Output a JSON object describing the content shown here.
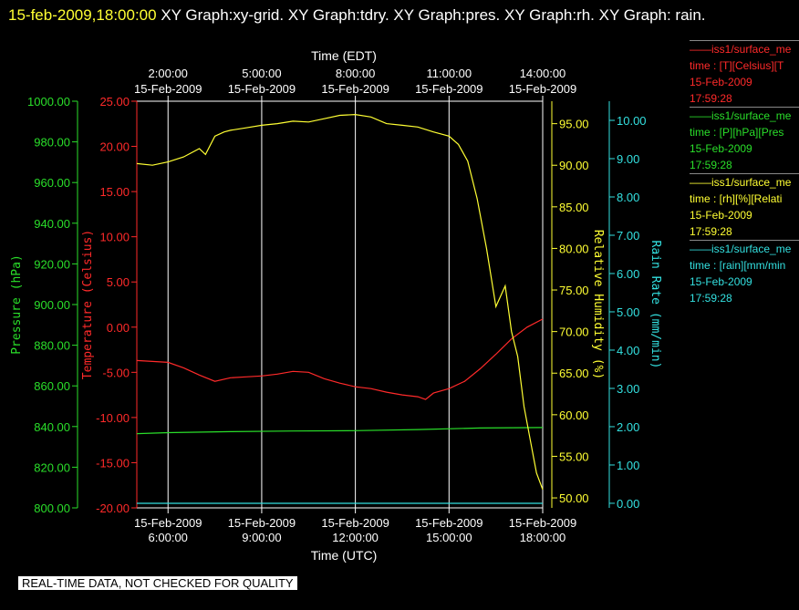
{
  "header": {
    "timestamp": "15-feb-2009,18:00:00",
    "graphs": " XY Graph:xy-grid.  XY Graph:tdry.  XY Graph:pres.  XY Graph:rh.  XY Graph: rain."
  },
  "footer": {
    "notice": "REAL-TIME DATA, NOT CHECKED FOR QUALITY"
  },
  "legend": [
    {
      "name": "iss1/surface_me",
      "var": "time : [T][Celsius][T",
      "date": "15-Feb-2009",
      "time": "17:59:28",
      "color": "#ff2a2a"
    },
    {
      "name": "iss1/surface_me",
      "var": "time : [P][hPa][Pres",
      "date": "15-Feb-2009",
      "time": "17:59:28",
      "color": "#2adf2a"
    },
    {
      "name": "iss1/surface_me",
      "var": "time : [rh][%][Relati",
      "date": "15-Feb-2009",
      "time": "17:59:28",
      "color": "#ffff33"
    },
    {
      "name": "iss1/surface_me",
      "var": "time : [rain][mm/min",
      "date": "15-Feb-2009",
      "time": "17:59:28",
      "color": "#33e0e0"
    }
  ],
  "chart_data": {
    "type": "line",
    "xlabel_top": "Time (EDT)",
    "xlabel_bottom": "Time (UTC)",
    "x_range_utc": [
      "15-Feb-2009 05:00:00",
      "15-Feb-2009 18:00:00"
    ],
    "top_ticks": [
      {
        "date": "15-Feb-2009",
        "time": "2:00:00",
        "utc_hour": 6
      },
      {
        "date": "15-Feb-2009",
        "time": "5:00:00",
        "utc_hour": 9
      },
      {
        "date": "15-Feb-2009",
        "time": "8:00:00",
        "utc_hour": 12
      },
      {
        "date": "15-Feb-2009",
        "time": "11:00:00",
        "utc_hour": 15
      },
      {
        "date": "15-Feb-2009",
        "time": "14:00:00",
        "utc_hour": 18
      }
    ],
    "bottom_ticks": [
      {
        "date": "15-Feb-2009",
        "time": "6:00:00",
        "utc_hour": 6
      },
      {
        "date": "15-Feb-2009",
        "time": "9:00:00",
        "utc_hour": 9
      },
      {
        "date": "15-Feb-2009",
        "time": "12:00:00",
        "utc_hour": 12
      },
      {
        "date": "15-Feb-2009",
        "time": "15:00:00",
        "utc_hour": 15
      },
      {
        "date": "15-Feb-2009",
        "time": "18:00:00",
        "utc_hour": 18
      }
    ],
    "grid": true,
    "axes": [
      {
        "id": "pres",
        "label": "Pressure (hPa)",
        "color": "#2adf2a",
        "range": [
          800,
          1000
        ],
        "ticks": [
          "800.00",
          "820.00",
          "840.00",
          "860.00",
          "880.00",
          "900.00",
          "920.00",
          "940.00",
          "960.00",
          "980.00",
          "1000.00"
        ]
      },
      {
        "id": "tdry",
        "label": "Temperature (Celsius)",
        "color": "#ff2a2a",
        "range": [
          -20,
          25
        ],
        "ticks": [
          "-20.00",
          "-15.00",
          "-10.00",
          "-5.00",
          "0.00",
          "5.00",
          "10.00",
          "15.00",
          "20.00",
          "25.00"
        ]
      },
      {
        "id": "rh",
        "label": "Relative Humidity (%)",
        "color": "#ffff33",
        "range": [
          48.8,
          97.7
        ],
        "ticks": [
          "50.00",
          "55.00",
          "60.00",
          "65.00",
          "70.00",
          "75.00",
          "80.00",
          "85.00",
          "90.00",
          "95.00"
        ]
      },
      {
        "id": "rain",
        "label": "Rain Rate (mm/min)",
        "color": "#33e0e0",
        "range": [
          -0.12,
          10.5
        ],
        "ticks": [
          "0.00",
          "1.00",
          "2.00",
          "3.00",
          "4.00",
          "5.00",
          "6.00",
          "7.00",
          "8.00",
          "9.00",
          "10.00"
        ]
      }
    ],
    "series": [
      {
        "axis": "tdry",
        "color": "#ff2a2a",
        "x": [
          5.0,
          5.5,
          6.0,
          6.5,
          7.0,
          7.5,
          8.0,
          8.5,
          9.0,
          9.5,
          10.0,
          10.5,
          11.0,
          11.5,
          12.0,
          12.5,
          13.0,
          13.5,
          14.0,
          14.25,
          14.5,
          15.0,
          15.5,
          16.0,
          16.5,
          17.0,
          17.5,
          18.0
        ],
        "y": [
          -3.7,
          -3.8,
          -3.9,
          -4.5,
          -5.3,
          -6.0,
          -5.6,
          -5.5,
          -5.4,
          -5.2,
          -4.9,
          -5.0,
          -5.7,
          -6.2,
          -6.6,
          -6.8,
          -7.2,
          -7.5,
          -7.7,
          -8.0,
          -7.3,
          -6.8,
          -6.0,
          -4.6,
          -3.0,
          -1.3,
          0.0,
          0.9
        ]
      },
      {
        "axis": "pres",
        "color": "#2adf2a",
        "x": [
          5.0,
          6.0,
          8.0,
          10.0,
          12.0,
          14.0,
          16.0,
          18.0
        ],
        "y": [
          836.5,
          837.0,
          837.5,
          837.8,
          838.0,
          838.5,
          839.3,
          839.5
        ]
      },
      {
        "axis": "rh",
        "color": "#ffff33",
        "x": [
          5.0,
          5.5,
          6.0,
          6.5,
          7.0,
          7.2,
          7.5,
          7.8,
          8.0,
          8.5,
          9.0,
          9.5,
          10.0,
          10.5,
          11.0,
          11.5,
          12.0,
          12.5,
          13.0,
          13.5,
          14.0,
          14.5,
          15.0,
          15.3,
          15.6,
          15.9,
          16.2,
          16.5,
          16.8,
          17.0,
          17.2,
          17.4,
          17.6,
          17.8,
          18.0
        ],
        "y": [
          90.2,
          90.0,
          90.4,
          91.0,
          92.0,
          91.3,
          93.5,
          94.0,
          94.2,
          94.5,
          94.8,
          95.0,
          95.3,
          95.2,
          95.6,
          96.0,
          96.1,
          95.8,
          95.0,
          94.8,
          94.6,
          94.0,
          93.5,
          92.5,
          90.5,
          86.0,
          80.0,
          73.0,
          75.5,
          70.0,
          67.0,
          61.0,
          57.0,
          53.0,
          51.0
        ]
      },
      {
        "axis": "rain",
        "color": "#33e0e0",
        "x": [
          5.0,
          18.0
        ],
        "y": [
          0.0,
          0.0
        ]
      }
    ]
  }
}
